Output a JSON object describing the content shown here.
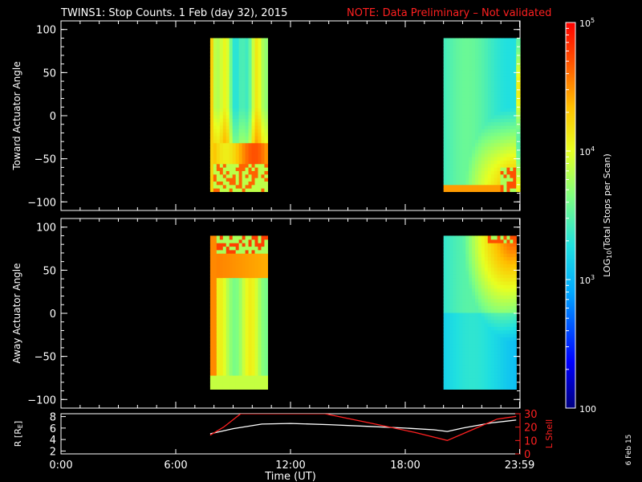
{
  "header": {
    "title": "TWINS1: Stop Counts.  1 Feb (day  32), 2015",
    "note": "NOTE: Data Preliminary – Not validated",
    "note_color": "#ff2020"
  },
  "side_stamp": "6 Feb 15",
  "colorbar": {
    "label": "LOG10(Total Stops per Scan)",
    "label_prefix": "LOG",
    "label_sub": "10",
    "label_rest": "(Total Stops per Scan)",
    "ticks": [
      {
        "base": "10",
        "exp": "5",
        "value": 100000
      },
      {
        "base": "10",
        "exp": "4",
        "value": 10000
      },
      {
        "base": "10",
        "exp": "3",
        "value": 1000
      },
      {
        "base": "100",
        "exp": "",
        "value": 100
      }
    ],
    "range": [
      100,
      100000
    ],
    "scale": "log"
  },
  "chart_data": [
    {
      "type": "heatmap",
      "ylabel": "Toward Actuator Angle",
      "ylim": [
        -110,
        110
      ],
      "yticks": [
        "100",
        "50",
        "0",
        "−50",
        "−100"
      ],
      "ytick_values": [
        100,
        50,
        0,
        -50,
        -100
      ],
      "xlim_hours": [
        0,
        24
      ],
      "data_intervals_hours": [
        [
          7.8,
          10.8
        ],
        [
          20.0,
          23.8
        ],
        [
          23.8,
          24.0
        ]
      ],
      "angle_range": [
        -88,
        90
      ]
    },
    {
      "type": "heatmap",
      "ylabel": "Away Actuator Angle",
      "ylim": [
        -110,
        110
      ],
      "yticks": [
        "100",
        "50",
        "0",
        "−50",
        "−100"
      ],
      "ytick_values": [
        100,
        50,
        0,
        -50,
        -100
      ],
      "xlim_hours": [
        0,
        24
      ],
      "data_intervals_hours": [
        [
          7.8,
          10.8
        ],
        [
          20.0,
          23.8
        ]
      ],
      "angle_range": [
        -88,
        90
      ]
    },
    {
      "type": "line",
      "ylabel_left": "R [RE]",
      "ylabel_left_main": "R [R",
      "ylabel_left_sub": "E",
      "ylabel_left_end": "]",
      "ylabel_right": "L Shell",
      "ylim_left": [
        1.5,
        8.5
      ],
      "ylim_right": [
        0,
        30
      ],
      "yticks_left": [
        "8",
        "6",
        "4",
        "2"
      ],
      "ytick_values_left": [
        8,
        6,
        4,
        2
      ],
      "yticks_right": [
        "30",
        "20",
        "10",
        "0"
      ],
      "ytick_values_right": [
        30,
        20,
        10,
        0
      ],
      "xlabel": "Time (UT)",
      "xticks": [
        "0:00",
        "6:00",
        "12:00",
        "18:00",
        "23:59"
      ],
      "xtick_values": [
        0,
        6,
        12,
        18,
        23.98
      ],
      "series": [
        {
          "name": "R",
          "color": "#ffffff",
          "axis": "left",
          "x": [
            7.8,
            9.0,
            10.5,
            12.0,
            14.0,
            16.0,
            18.0,
            19.5,
            20.2,
            21.0,
            22.5,
            23.8
          ],
          "y": [
            5.0,
            5.9,
            6.7,
            6.8,
            6.6,
            6.3,
            6.0,
            5.7,
            5.4,
            6.0,
            6.9,
            7.4
          ]
        },
        {
          "name": "L Shell",
          "color": "#ff2020",
          "axis": "right",
          "x": [
            7.8,
            8.5,
            9.4,
            13.8,
            16.5,
            18.5,
            20.2,
            21.5,
            22.8,
            23.8
          ],
          "y": [
            14,
            20,
            30,
            30,
            22,
            16,
            10,
            18,
            26,
            28
          ]
        }
      ]
    }
  ]
}
